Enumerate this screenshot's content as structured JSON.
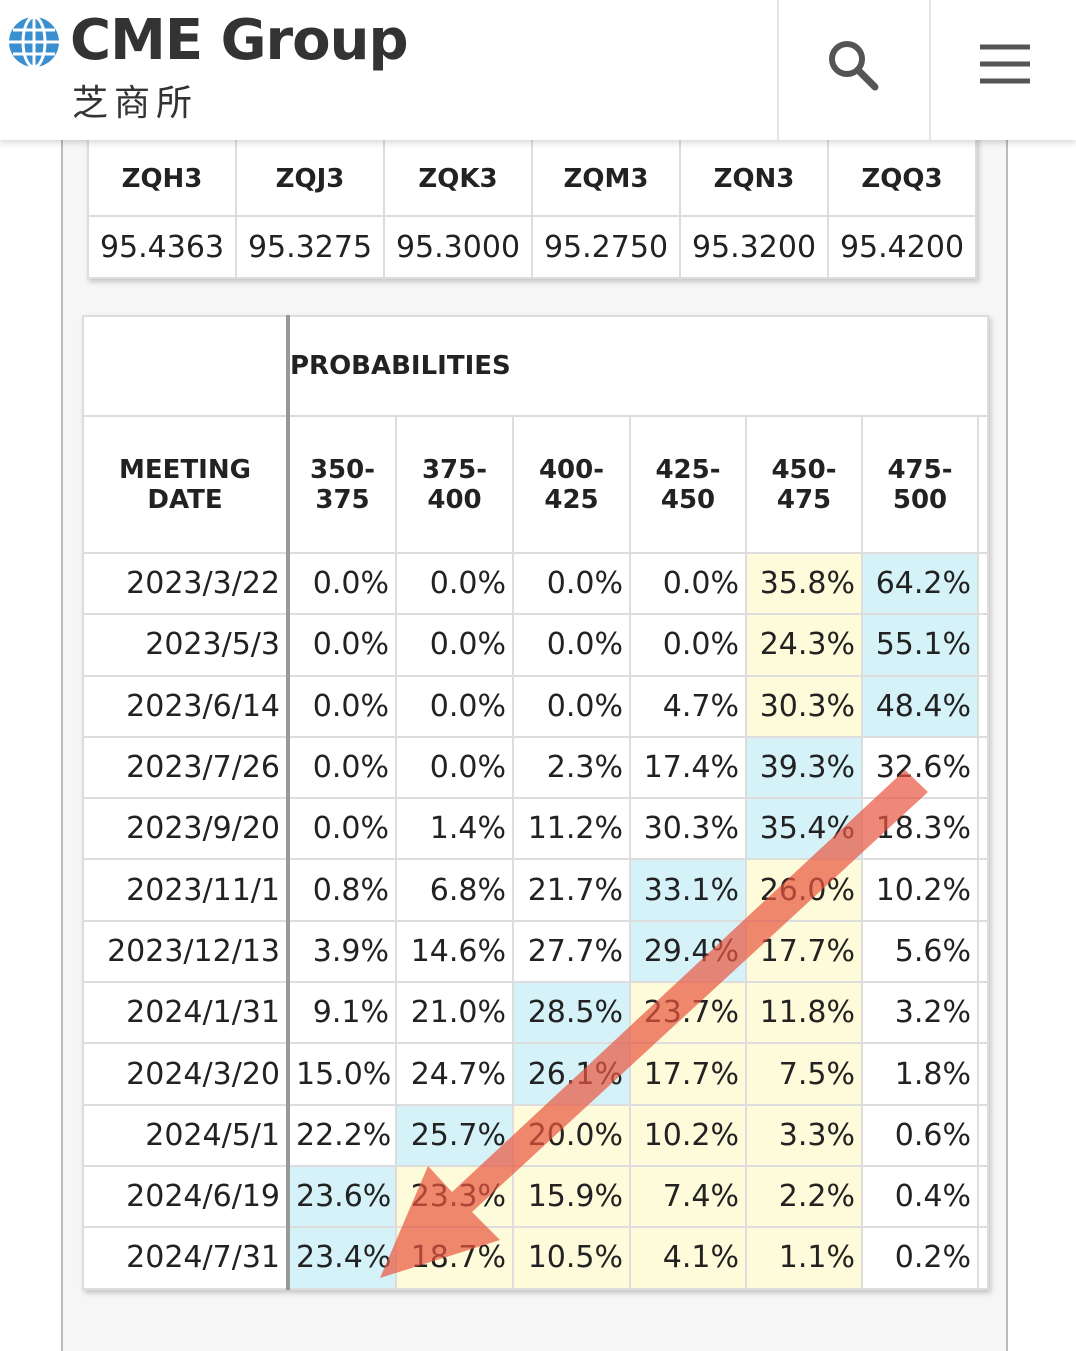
{
  "header": {
    "logo": "CME Group",
    "logo_subtitle": "芝商所"
  },
  "futures": {
    "columns": [
      "ZQH3",
      "ZQJ3",
      "ZQK3",
      "ZQM3",
      "ZQN3",
      "ZQQ3"
    ],
    "prices": [
      "95.4363",
      "95.3275",
      "95.3000",
      "95.2750",
      "95.3200",
      "95.4200"
    ]
  },
  "probabilities": {
    "title": "PROBABILITIES",
    "meeting_date_header": "MEETING DATE",
    "ranges": [
      "350-375",
      "375-400",
      "400-425",
      "425-450",
      "450-475",
      "475-500"
    ],
    "rows": [
      {
        "date": "2023/3/22",
        "values": [
          "0.0%",
          "0.0%",
          "0.0%",
          "0.0%",
          "35.8%",
          "64.2%"
        ]
      },
      {
        "date": "2023/5/3",
        "values": [
          "0.0%",
          "0.0%",
          "0.0%",
          "0.0%",
          "24.3%",
          "55.1%"
        ]
      },
      {
        "date": "2023/6/14",
        "values": [
          "0.0%",
          "0.0%",
          "0.0%",
          "4.7%",
          "30.3%",
          "48.4%"
        ]
      },
      {
        "date": "2023/7/26",
        "values": [
          "0.0%",
          "0.0%",
          "2.3%",
          "17.4%",
          "39.3%",
          "32.6%"
        ]
      },
      {
        "date": "2023/9/20",
        "values": [
          "0.0%",
          "1.4%",
          "11.2%",
          "30.3%",
          "35.4%",
          "18.3%"
        ]
      },
      {
        "date": "2023/11/1",
        "values": [
          "0.8%",
          "6.8%",
          "21.7%",
          "33.1%",
          "26.0%",
          "10.2%"
        ]
      },
      {
        "date": "2023/12/13",
        "values": [
          "3.9%",
          "14.6%",
          "27.7%",
          "29.4%",
          "17.7%",
          "5.6%"
        ]
      },
      {
        "date": "2024/1/31",
        "values": [
          "9.1%",
          "21.0%",
          "28.5%",
          "23.7%",
          "11.8%",
          "3.2%"
        ]
      },
      {
        "date": "2024/3/20",
        "values": [
          "15.0%",
          "24.7%",
          "26.1%",
          "17.7%",
          "7.5%",
          "1.8%"
        ]
      },
      {
        "date": "2024/5/1",
        "values": [
          "22.2%",
          "25.7%",
          "20.0%",
          "10.2%",
          "3.3%",
          "0.6%"
        ]
      },
      {
        "date": "2024/6/19",
        "values": [
          "23.6%",
          "23.3%",
          "15.9%",
          "7.4%",
          "2.2%",
          "0.4%"
        ]
      },
      {
        "date": "2024/7/31",
        "values": [
          "23.4%",
          "18.7%",
          "10.5%",
          "4.1%",
          "1.1%",
          "0.2%"
        ]
      }
    ]
  }
}
